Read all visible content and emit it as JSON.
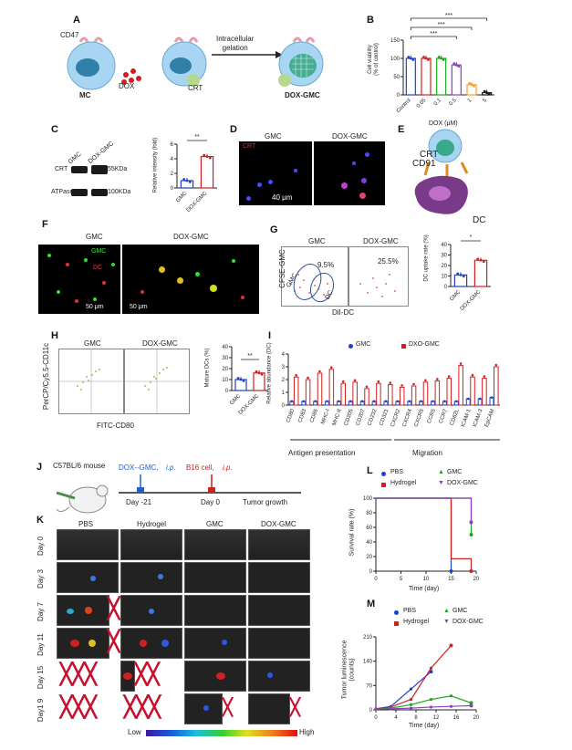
{
  "panels": {
    "A": {
      "letter": "A",
      "cd47": "CD47",
      "mc": "MC",
      "dox": "DOX",
      "crt": "CRT",
      "step": "Intracellular\ngelation",
      "product": "DOX-GMC"
    },
    "B": {
      "letter": "B",
      "ylabel": "Cell viability\n(% of control)",
      "xlabel": "DOX (μM)",
      "categories": [
        "Control",
        "0.05",
        "0.1",
        "0.5",
        "1",
        "5"
      ],
      "sig": "***"
    },
    "C": {
      "letter": "C",
      "gmc": "GMC",
      "doxgmc": "DOX-GMC",
      "crt": "CRT",
      "atpase": "ATPase",
      "kda55": "55KDa",
      "kda100": "100KDa",
      "ylabel": "Relative intensity (fold)",
      "sig": "**"
    },
    "D": {
      "letter": "D",
      "gmc": "GMC",
      "doxgmc": "DOX-GMC",
      "crt": "CRT",
      "scale": "40 μm"
    },
    "E": {
      "letter": "E",
      "crt": "CRT",
      "cd91": "CD91",
      "dc": "DC"
    },
    "F": {
      "letter": "F",
      "gmc": "GMC",
      "doxgmc": "DOX-GMC",
      "green": "GMC",
      "red": "DC",
      "scale1": "50 μm",
      "scale2": "50 μm"
    },
    "G": {
      "letter": "G",
      "gmc": "GMC",
      "doxgmc": "DOX-GMC",
      "pct1": "9.5%",
      "pct2": "25.5%",
      "ylabel": "CFSE-GMC",
      "xlabel": "DiI-DC",
      "gate_gmc": "GMC",
      "gate_dc": "DC",
      "bar_ylabel": "DC uptake rate (%)",
      "sig": "*"
    },
    "H": {
      "letter": "H",
      "gmc": "GMC",
      "doxgmc": "DOX-GMC",
      "ylabel": "PerCP/Cy5.5-CD11c",
      "xlabel": "FITC-CD80",
      "bar_ylabel": "Mature DCs (%)",
      "sig": "**"
    },
    "I": {
      "letter": "I",
      "ylabel": "Relative abundance (DC)",
      "legend_gmc": "GMC",
      "legend_dxo": "DXO-GMC",
      "group1": "Antigen presentation",
      "group2": "Migration"
    },
    "J": {
      "letter": "J",
      "mouse": "C57BL/6 mouse",
      "inj1": "DOX--GMC,",
      "ip1": "i.p.",
      "inj2": "B16 cell,",
      "ip2": "i.p.",
      "day1": "Day -21",
      "day2": "Day 0",
      "growth": "Tumor growth"
    },
    "K": {
      "letter": "K",
      "groups": [
        "PBS",
        "Hydrogel",
        "GMC",
        "DOX-GMC"
      ],
      "days": [
        "Day 0",
        "Day 3",
        "Day 7",
        "Day 11",
        "Day 15",
        "Day1 9"
      ],
      "low": "Low",
      "high": "High"
    },
    "L": {
      "letter": "L",
      "ylabel": "Survival rate (%)",
      "xlabel": "Time (day)",
      "legend": [
        "PBS",
        "GMC",
        "Hydrogel",
        "DOX-GMC"
      ]
    },
    "M": {
      "letter": "M",
      "ylabel": "Tumor luminescence\n(counts)",
      "xlabel": "Time (day)",
      "legend": [
        "PBS",
        "GMC",
        "Hydrogel",
        "DOX-GMC"
      ]
    }
  },
  "colors": {
    "pbs": "#1f3fd1",
    "gmc": "#1aa81a",
    "hydrogel": "#d11f1f",
    "doxgmc": "#8a3fbf",
    "orange": "#f0a030",
    "black": "#111111"
  },
  "chart_data": [
    {
      "id": "B",
      "type": "bar",
      "categories": [
        "Control",
        "0.05",
        "0.1",
        "0.5",
        "1",
        "5"
      ],
      "values": [
        100,
        100,
        100,
        82,
        28,
        6
      ],
      "ylim": [
        0,
        150
      ],
      "yticks": [
        0,
        50,
        100,
        150
      ],
      "ylabel": "Cell viability (% of control)",
      "xlabel": "DOX (μM)"
    },
    {
      "id": "C",
      "type": "bar",
      "categories": [
        "GMC",
        "DOX-GMC"
      ],
      "values": [
        1,
        4.3
      ],
      "ylim": [
        0,
        6
      ],
      "yticks": [
        0,
        2,
        4,
        6
      ],
      "ylabel": "Relative intensity (fold)"
    },
    {
      "id": "G",
      "type": "bar",
      "categories": [
        "GMC",
        "DOX-GMC"
      ],
      "values": [
        11,
        25
      ],
      "ylim": [
        0,
        40
      ],
      "yticks": [
        0,
        10,
        20,
        30,
        40
      ],
      "ylabel": "DC uptake rate (%)"
    },
    {
      "id": "H",
      "type": "bar",
      "categories": [
        "GMC",
        "DOX-GMC"
      ],
      "values": [
        10,
        16
      ],
      "ylim": [
        0,
        40
      ],
      "yticks": [
        0,
        10,
        20,
        30,
        40
      ],
      "ylabel": "Mature DCs (%)"
    },
    {
      "id": "I",
      "type": "bar",
      "categories": [
        "CD80",
        "CD83",
        "CD86",
        "MHC-I",
        "MHC-II",
        "CD205",
        "CD207",
        "CD232",
        "CD321",
        "CXCR2",
        "CXCR4",
        "CXCR5",
        "CCR5",
        "CCR7",
        "CD62L",
        "ICAM-1",
        "ICAM-3",
        "EpCAM"
      ],
      "series": [
        {
          "name": "GMC",
          "values": [
            0.3,
            0.3,
            0.3,
            0.3,
            0.3,
            0.3,
            0.3,
            0.3,
            0.3,
            0.3,
            0.3,
            0.3,
            0.3,
            0.3,
            0.3,
            0.5,
            0.5,
            0.6
          ]
        },
        {
          "name": "DXO-GMC",
          "values": [
            2.2,
            2.0,
            2.5,
            2.8,
            1.7,
            1.8,
            1.3,
            1.7,
            1.6,
            1.4,
            1.5,
            1.8,
            1.9,
            2.1,
            3.1,
            2.2,
            2.1,
            3.0
          ]
        }
      ],
      "ylim": [
        0,
        4
      ],
      "yticks": [
        0,
        1,
        2,
        3,
        4
      ],
      "ylabel": "Relative abundance (DC)"
    },
    {
      "id": "L",
      "type": "line",
      "xlim": [
        0,
        20
      ],
      "ylim": [
        0,
        100
      ],
      "xticks": [
        0,
        5,
        10,
        15,
        20
      ],
      "yticks": [
        0,
        20,
        40,
        60,
        80,
        100
      ],
      "xlabel": "Time (day)",
      "ylabel": "Survival rate (%)",
      "series": [
        {
          "name": "PBS",
          "x": [
            0,
            15,
            15
          ],
          "y": [
            100,
            100,
            0
          ]
        },
        {
          "name": "Hydrogel",
          "x": [
            0,
            15,
            15,
            19,
            19
          ],
          "y": [
            100,
            100,
            17,
            17,
            0
          ]
        },
        {
          "name": "GMC",
          "x": [
            0,
            19,
            19
          ],
          "y": [
            100,
            100,
            50
          ]
        },
        {
          "name": "DOX-GMC",
          "x": [
            0,
            19,
            19
          ],
          "y": [
            100,
            100,
            67
          ]
        }
      ]
    },
    {
      "id": "M",
      "type": "line",
      "xlim": [
        0,
        20
      ],
      "ylim": [
        0,
        210
      ],
      "xticks": [
        0,
        4,
        8,
        12,
        16,
        20
      ],
      "yticks": [
        0,
        70,
        140,
        210
      ],
      "xlabel": "Time (day)",
      "ylabel": "Tumor luminescence (counts)",
      "series": [
        {
          "name": "PBS",
          "x": [
            0,
            3,
            7,
            11
          ],
          "y": [
            3,
            10,
            60,
            110
          ]
        },
        {
          "name": "Hydrogel",
          "x": [
            0,
            3,
            7,
            11,
            15
          ],
          "y": [
            3,
            8,
            30,
            120,
            185
          ]
        },
        {
          "name": "GMC",
          "x": [
            0,
            3,
            7,
            11,
            15,
            19
          ],
          "y": [
            2,
            5,
            15,
            30,
            40,
            20
          ]
        },
        {
          "name": "DOX-GMC",
          "x": [
            0,
            3,
            7,
            11,
            15,
            19
          ],
          "y": [
            2,
            3,
            5,
            8,
            10,
            12
          ]
        }
      ]
    }
  ]
}
